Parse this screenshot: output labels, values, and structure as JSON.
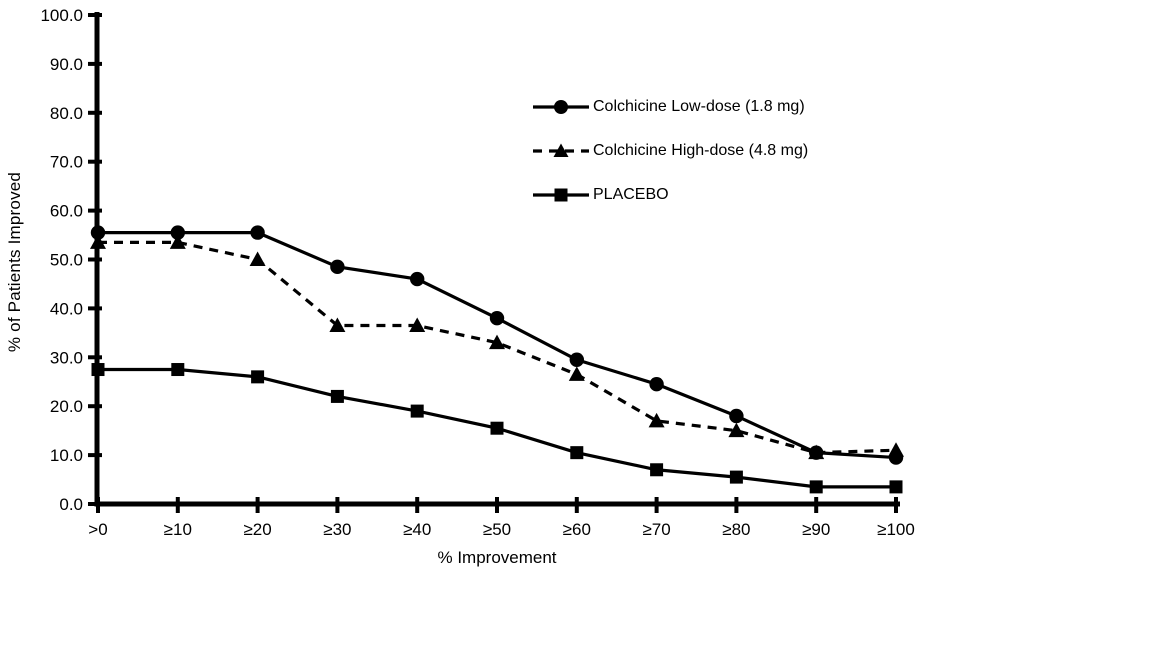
{
  "chart_data": {
    "type": "line",
    "title": "",
    "xlabel": "% Improvement",
    "ylabel": "% of Patients Improved",
    "categories": [
      ">0",
      "≥10",
      "≥20",
      "≥30",
      "≥40",
      "≥50",
      "≥60",
      "≥70",
      "≥80",
      "≥90",
      "≥100"
    ],
    "ylim": [
      0,
      100
    ],
    "yticks": [
      0,
      10,
      20,
      30,
      40,
      50,
      60,
      70,
      80,
      90,
      100
    ],
    "ytick_decimals": 1,
    "grid": false,
    "legend_position": "inside-upper-right",
    "line_color": "#000000",
    "background_color": "#ffffff",
    "series": [
      {
        "name": "Colchicine Low-dose (1.8 mg)",
        "marker": "circle",
        "line": "solid",
        "values": [
          55.5,
          55.5,
          55.5,
          48.5,
          46.0,
          38.0,
          29.5,
          24.5,
          18.0,
          10.5,
          9.5
        ]
      },
      {
        "name": "Colchicine High-dose (4.8 mg)",
        "marker": "triangle",
        "line": "dashed",
        "values": [
          53.5,
          53.5,
          50.0,
          36.5,
          36.5,
          33.0,
          26.5,
          17.0,
          15.0,
          10.5,
          11.0
        ]
      },
      {
        "name": "PLACEBO",
        "marker": "square",
        "line": "solid",
        "values": [
          27.5,
          27.5,
          26.0,
          22.0,
          19.0,
          15.5,
          10.5,
          7.0,
          5.5,
          3.5,
          3.5
        ]
      }
    ]
  }
}
